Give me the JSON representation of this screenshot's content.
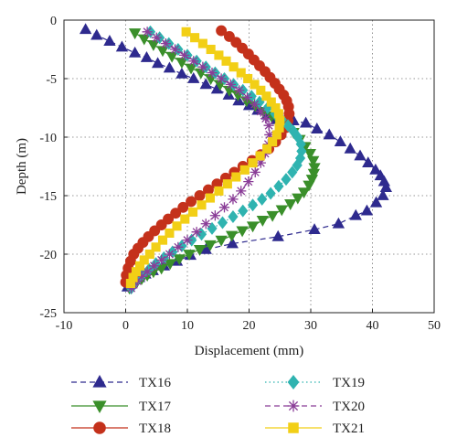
{
  "chart_data": {
    "type": "line",
    "xlabel": "Displacement (mm)",
    "ylabel": "Depth (m)",
    "xlim": [
      -10,
      50
    ],
    "ylim": [
      -25,
      0
    ],
    "xticks": [
      "-10",
      "0",
      "10",
      "20",
      "30",
      "40",
      "50"
    ],
    "yticks": [
      "0",
      "-5",
      "-10",
      "-15",
      "-20",
      "-25"
    ],
    "grid": true,
    "grid_style": "dotted",
    "legend_placement": "bottom, two columns",
    "series": [
      {
        "name": "TX16",
        "color": "#2e2a8e",
        "marker": "triangle-up",
        "line": "dashed",
        "x": [
          -6.5,
          -4.7,
          -2.6,
          -0.6,
          1.5,
          3.4,
          5.2,
          7.1,
          9.1,
          11.0,
          13.0,
          14.8,
          16.7,
          18.3,
          20.0,
          21.4,
          22.9,
          24.4,
          25.8,
          27.2,
          29.2,
          31.0,
          33.0,
          34.8,
          36.4,
          38.0,
          39.3,
          40.5,
          41.3,
          41.9,
          42.2,
          41.7,
          40.6,
          39.1,
          37.3,
          34.5,
          30.6,
          24.7,
          17.3,
          13.0,
          10.5,
          8.3,
          6.2,
          4.4,
          3.2,
          2.2,
          1.5,
          1.0,
          0.6,
          0.3
        ],
        "y": [
          -0.8,
          -1.3,
          -1.8,
          -2.3,
          -2.8,
          -3.2,
          -3.7,
          -4.1,
          -4.6,
          -5.0,
          -5.5,
          -5.9,
          -6.4,
          -6.9,
          -7.3,
          -7.7,
          -8.1,
          -8.5,
          -8.9,
          -8.6,
          -8.8,
          -9.3,
          -9.8,
          -10.4,
          -11.0,
          -11.6,
          -12.2,
          -12.8,
          -13.3,
          -13.8,
          -14.3,
          -15.0,
          -15.6,
          -16.3,
          -16.7,
          -17.4,
          -17.9,
          -18.5,
          -19.1,
          -19.6,
          -20.1,
          -20.6,
          -21.0,
          -21.4,
          -21.7,
          -22.0,
          -22.2,
          -22.4,
          -22.6,
          -22.8
        ]
      },
      {
        "name": "TX17",
        "color": "#3a8f2a",
        "marker": "triangle-down",
        "line": "solid",
        "x": [
          1.5,
          3.0,
          4.5,
          6.0,
          7.5,
          9.1,
          10.6,
          12.2,
          13.8,
          15.3,
          16.8,
          18.2,
          19.6,
          21.0,
          22.3,
          23.6,
          24.8,
          26.0,
          27.2,
          28.2,
          29.1,
          29.9,
          30.4,
          30.6,
          30.5,
          30.2,
          29.7,
          28.9,
          27.9,
          26.7,
          25.3,
          23.8,
          22.2,
          20.6,
          18.9,
          17.2,
          15.5,
          13.7,
          12.0,
          10.3,
          8.7,
          7.2,
          5.8,
          4.5,
          3.5,
          2.6,
          1.9,
          1.4,
          1.0,
          0.6
        ],
        "y": [
          -1.1,
          -1.6,
          -2.1,
          -2.6,
          -3.1,
          -3.6,
          -4.1,
          -4.5,
          -5.0,
          -5.5,
          -6.0,
          -6.4,
          -6.9,
          -7.3,
          -7.8,
          -8.2,
          -8.7,
          -9.1,
          -9.6,
          -10.2,
          -10.8,
          -11.4,
          -12.0,
          -12.6,
          -13.1,
          -13.6,
          -14.1,
          -14.7,
          -15.2,
          -15.7,
          -16.2,
          -16.7,
          -17.1,
          -17.6,
          -18.0,
          -18.4,
          -18.8,
          -19.2,
          -19.6,
          -20.0,
          -20.4,
          -20.8,
          -21.2,
          -21.5,
          -21.8,
          -22.1,
          -22.3,
          -22.5,
          -22.7,
          -22.9
        ]
      },
      {
        "name": "TX18",
        "color": "#c4311b",
        "marker": "circle",
        "line": "solid",
        "x": [
          15.5,
          16.8,
          17.9,
          18.9,
          19.9,
          20.8,
          21.7,
          22.6,
          23.4,
          24.2,
          24.9,
          25.6,
          26.1,
          26.4,
          26.5,
          26.3,
          25.9,
          25.2,
          24.3,
          23.2,
          21.9,
          20.5,
          19.0,
          17.6,
          16.2,
          14.8,
          13.4,
          12.0,
          10.6,
          9.3,
          8.1,
          6.9,
          5.8,
          4.7,
          3.7,
          2.8,
          2.0,
          1.3,
          0.8,
          0.4,
          0.1,
          0.0
        ],
        "y": [
          -0.9,
          -1.4,
          -1.9,
          -2.4,
          -2.9,
          -3.4,
          -3.9,
          -4.4,
          -4.9,
          -5.4,
          -5.9,
          -6.4,
          -6.9,
          -7.4,
          -8.0,
          -8.6,
          -9.2,
          -9.8,
          -10.4,
          -11.0,
          -11.5,
          -12.0,
          -12.5,
          -13.0,
          -13.5,
          -14.0,
          -14.5,
          -15.0,
          -15.5,
          -16.0,
          -16.5,
          -17.0,
          -17.5,
          -18.0,
          -18.5,
          -19.0,
          -19.5,
          -20.0,
          -20.6,
          -21.2,
          -21.8,
          -22.4
        ]
      },
      {
        "name": "TX19",
        "color": "#2fb3b0",
        "marker": "diamond",
        "line": "dotted",
        "x": [
          4.0,
          5.5,
          7.0,
          8.5,
          10.0,
          11.5,
          13.0,
          14.5,
          16.0,
          17.5,
          19.0,
          20.4,
          21.7,
          23.0,
          24.2,
          25.3,
          26.3,
          27.2,
          27.9,
          28.4,
          28.5,
          28.3,
          27.8,
          27.0,
          26.0,
          24.8,
          23.5,
          22.1,
          20.6,
          19.0,
          17.4,
          15.7,
          14.0,
          12.3,
          10.7,
          9.1,
          7.6,
          6.2,
          4.9,
          3.8,
          2.8,
          2.0,
          1.4,
          0.9
        ],
        "y": [
          -1.0,
          -1.5,
          -2.0,
          -2.5,
          -3.0,
          -3.5,
          -4.0,
          -4.5,
          -5.0,
          -5.5,
          -6.0,
          -6.5,
          -7.0,
          -7.5,
          -8.0,
          -8.5,
          -9.0,
          -9.5,
          -10.0,
          -10.6,
          -11.2,
          -11.8,
          -12.4,
          -13.0,
          -13.6,
          -14.2,
          -14.8,
          -15.3,
          -15.8,
          -16.3,
          -16.8,
          -17.3,
          -17.8,
          -18.3,
          -18.8,
          -19.3,
          -19.8,
          -20.3,
          -20.8,
          -21.3,
          -21.7,
          -22.1,
          -22.5,
          -22.9
        ]
      },
      {
        "name": "TX20",
        "color": "#8a3d97",
        "marker": "asterisk",
        "line": "dashed",
        "x": [
          3.5,
          5.0,
          6.5,
          8.0,
          9.5,
          11.0,
          12.5,
          14.0,
          15.5,
          17.0,
          18.4,
          19.7,
          20.9,
          21.9,
          22.7,
          23.2,
          23.3,
          23.1,
          22.6,
          21.9,
          21.0,
          19.9,
          18.7,
          17.4,
          16.0,
          14.5,
          13.0,
          11.5,
          10.0,
          8.5,
          7.1,
          5.8,
          4.6,
          3.5,
          2.6,
          1.9,
          1.3,
          0.9
        ],
        "y": [
          -1.0,
          -1.5,
          -2.0,
          -2.5,
          -3.0,
          -3.5,
          -4.0,
          -4.5,
          -5.0,
          -5.5,
          -6.0,
          -6.6,
          -7.2,
          -7.8,
          -8.4,
          -9.0,
          -9.8,
          -10.6,
          -11.4,
          -12.2,
          -13.0,
          -13.8,
          -14.6,
          -15.3,
          -16.0,
          -16.7,
          -17.4,
          -18.1,
          -18.8,
          -19.4,
          -20.0,
          -20.5,
          -21.0,
          -21.5,
          -21.9,
          -22.3,
          -22.6,
          -22.9
        ]
      },
      {
        "name": "TX21",
        "color": "#f2cf16",
        "marker": "square",
        "line": "solid",
        "x": [
          9.8,
          11.2,
          12.5,
          13.8,
          15.1,
          16.3,
          17.5,
          18.7,
          19.8,
          20.9,
          21.9,
          22.8,
          23.6,
          24.3,
          24.8,
          25.0,
          24.9,
          24.5,
          23.8,
          22.9,
          21.8,
          20.6,
          19.3,
          17.9,
          16.5,
          15.1,
          13.7,
          12.3,
          10.9,
          9.6,
          8.3,
          7.1,
          6.0,
          4.9,
          3.9,
          3.0,
          2.3,
          1.7,
          1.2,
          0.8
        ],
        "y": [
          -1.0,
          -1.5,
          -2.0,
          -2.5,
          -3.0,
          -3.5,
          -4.0,
          -4.5,
          -5.0,
          -5.5,
          -6.0,
          -6.5,
          -7.0,
          -7.5,
          -8.0,
          -8.6,
          -9.2,
          -9.8,
          -10.4,
          -11.0,
          -11.6,
          -12.2,
          -12.8,
          -13.4,
          -14.0,
          -14.6,
          -15.2,
          -15.8,
          -16.4,
          -17.0,
          -17.6,
          -18.2,
          -18.8,
          -19.4,
          -20.0,
          -20.5,
          -21.0,
          -21.5,
          -22.0,
          -22.5
        ]
      }
    ]
  }
}
